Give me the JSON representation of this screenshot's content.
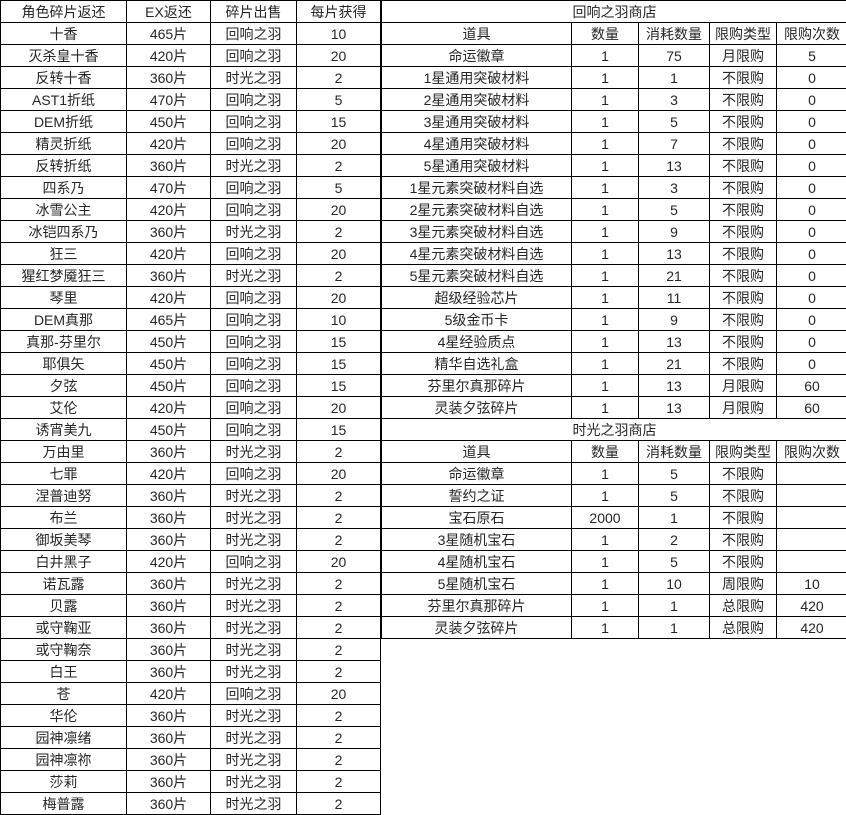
{
  "colors": {
    "background": "#ffffff",
    "border": "#000000",
    "text": "#262626"
  },
  "left_table": {
    "headers": [
      "角色碎片返还",
      "EX返还",
      "碎片出售",
      "每片获得"
    ],
    "rows": [
      [
        "十香",
        "465片",
        "回响之羽",
        "10"
      ],
      [
        "灭杀皇十香",
        "420片",
        "回响之羽",
        "20"
      ],
      [
        "反转十香",
        "360片",
        "时光之羽",
        "2"
      ],
      [
        "AST1折纸",
        "470片",
        "回响之羽",
        "5"
      ],
      [
        "DEM折纸",
        "450片",
        "回响之羽",
        "15"
      ],
      [
        "精灵折纸",
        "420片",
        "回响之羽",
        "20"
      ],
      [
        "反转折纸",
        "360片",
        "时光之羽",
        "2"
      ],
      [
        "四系乃",
        "470片",
        "回响之羽",
        "5"
      ],
      [
        "冰雪公主",
        "420片",
        "回响之羽",
        "20"
      ],
      [
        "冰铠四系乃",
        "360片",
        "时光之羽",
        "2"
      ],
      [
        "狂三",
        "420片",
        "回响之羽",
        "20"
      ],
      [
        "猩红梦魇狂三",
        "360片",
        "时光之羽",
        "2"
      ],
      [
        "琴里",
        "420片",
        "回响之羽",
        "20"
      ],
      [
        "DEM真那",
        "465片",
        "回响之羽",
        "10"
      ],
      [
        "真那-芬里尔",
        "450片",
        "回响之羽",
        "15"
      ],
      [
        "耶俱矢",
        "450片",
        "回响之羽",
        "15"
      ],
      [
        "夕弦",
        "450片",
        "回响之羽",
        "15"
      ],
      [
        "艾伦",
        "420片",
        "回响之羽",
        "20"
      ],
      [
        "诱宵美九",
        "450片",
        "回响之羽",
        "15"
      ],
      [
        "万由里",
        "360片",
        "时光之羽",
        "2"
      ],
      [
        "七罪",
        "420片",
        "回响之羽",
        "20"
      ],
      [
        "涅普迪努",
        "360片",
        "时光之羽",
        "2"
      ],
      [
        "布兰",
        "360片",
        "时光之羽",
        "2"
      ],
      [
        "御坂美琴",
        "360片",
        "时光之羽",
        "2"
      ],
      [
        "白井黑子",
        "420片",
        "回响之羽",
        "20"
      ],
      [
        "诺瓦露",
        "360片",
        "时光之羽",
        "2"
      ],
      [
        "贝露",
        "360片",
        "时光之羽",
        "2"
      ],
      [
        "或守鞠亚",
        "360片",
        "时光之羽",
        "2"
      ],
      [
        "或守鞠奈",
        "360片",
        "时光之羽",
        "2"
      ],
      [
        "白王",
        "360片",
        "时光之羽",
        "2"
      ],
      [
        "苍",
        "420片",
        "回响之羽",
        "20"
      ],
      [
        "华伦",
        "360片",
        "时光之羽",
        "2"
      ],
      [
        "园神凛绪",
        "360片",
        "时光之羽",
        "2"
      ],
      [
        "园神凛祢",
        "360片",
        "时光之羽",
        "2"
      ],
      [
        "莎莉",
        "360片",
        "时光之羽",
        "2"
      ],
      [
        "梅普露",
        "360片",
        "时光之羽",
        "2"
      ]
    ]
  },
  "shops": [
    {
      "title": "回响之羽商店",
      "headers": [
        "道具",
        "数量",
        "消耗数量",
        "限购类型",
        "限购次数"
      ],
      "rows": [
        [
          "命运徽章",
          "1",
          "75",
          "月限购",
          "5"
        ],
        [
          "1星通用突破材料",
          "1",
          "1",
          "不限购",
          "0"
        ],
        [
          "2星通用突破材料",
          "1",
          "3",
          "不限购",
          "0"
        ],
        [
          "3星通用突破材料",
          "1",
          "5",
          "不限购",
          "0"
        ],
        [
          "4星通用突破材料",
          "1",
          "7",
          "不限购",
          "0"
        ],
        [
          "5星通用突破材料",
          "1",
          "13",
          "不限购",
          "0"
        ],
        [
          "1星元素突破材料自选",
          "1",
          "3",
          "不限购",
          "0"
        ],
        [
          "2星元素突破材料自选",
          "1",
          "5",
          "不限购",
          "0"
        ],
        [
          "3星元素突破材料自选",
          "1",
          "9",
          "不限购",
          "0"
        ],
        [
          "4星元素突破材料自选",
          "1",
          "13",
          "不限购",
          "0"
        ],
        [
          "5星元素突破材料自选",
          "1",
          "21",
          "不限购",
          "0"
        ],
        [
          "超级经验芯片",
          "1",
          "11",
          "不限购",
          "0"
        ],
        [
          "5级金币卡",
          "1",
          "9",
          "不限购",
          "0"
        ],
        [
          "4星经验质点",
          "1",
          "13",
          "不限购",
          "0"
        ],
        [
          "精华自选礼盒",
          "1",
          "21",
          "不限购",
          "0"
        ],
        [
          "芬里尔真那碎片",
          "1",
          "13",
          "月限购",
          "60"
        ],
        [
          "灵装夕弦碎片",
          "1",
          "13",
          "月限购",
          "60"
        ]
      ]
    },
    {
      "title": "时光之羽商店",
      "headers": [
        "道具",
        "数量",
        "消耗数量",
        "限购类型",
        "限购次数"
      ],
      "rows": [
        [
          "命运徽章",
          "1",
          "5",
          "不限购",
          ""
        ],
        [
          "誓约之证",
          "1",
          "5",
          "不限购",
          ""
        ],
        [
          "宝石原石",
          "2000",
          "1",
          "不限购",
          ""
        ],
        [
          "3星随机宝石",
          "1",
          "2",
          "不限购",
          ""
        ],
        [
          "4星随机宝石",
          "1",
          "5",
          "不限购",
          ""
        ],
        [
          "5星随机宝石",
          "1",
          "10",
          "周限购",
          "10"
        ],
        [
          "芬里尔真那碎片",
          "1",
          "1",
          "总限购",
          "420"
        ],
        [
          "灵装夕弦碎片",
          "1",
          "1",
          "总限购",
          "420"
        ]
      ]
    }
  ]
}
